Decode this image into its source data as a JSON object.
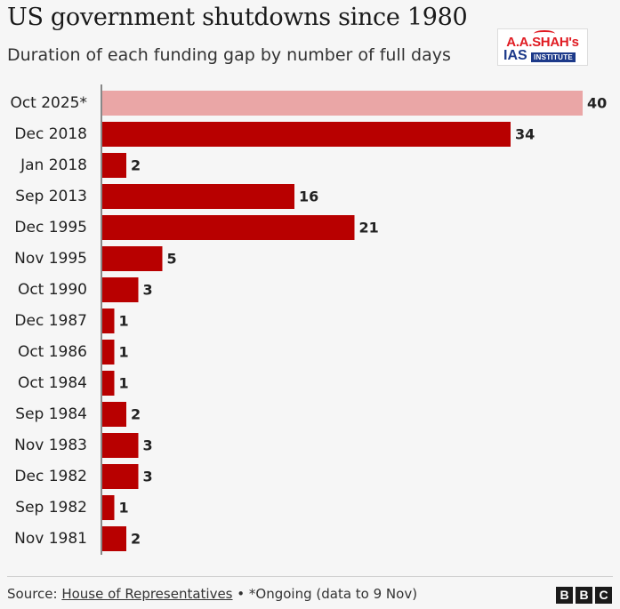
{
  "header": {
    "title": "US government shutdowns since 1980",
    "subtitle": "Duration of each funding gap by number of full days"
  },
  "logo": {
    "line1": "A.A.SHAH's",
    "ias": "IAS",
    "institute": "INSTITUTE"
  },
  "footer": {
    "source_prefix": "Source: ",
    "source_link": "House of Representatives",
    "separator": " • ",
    "note": "*Ongoing (data to 9 Nov)",
    "brand": [
      "B",
      "B",
      "C"
    ]
  },
  "colors": {
    "bar": "#b80000",
    "bar_highlight": "#eaa6a6",
    "axis": "#1a1a1a"
  },
  "chart_data": {
    "type": "bar",
    "orientation": "horizontal",
    "title": "US government shutdowns since 1980",
    "subtitle": "Duration of each funding gap by number of full days",
    "xlabel": "",
    "ylabel": "",
    "xlim": [
      0,
      40
    ],
    "grid": false,
    "legend": "none",
    "categories": [
      "Oct 2025*",
      "Dec 2018",
      "Jan 2018",
      "Sep 2013",
      "Dec 1995",
      "Nov 1995",
      "Oct 1990",
      "Dec 1987",
      "Oct 1986",
      "Oct 1984",
      "Sep 1984",
      "Nov 1983",
      "Dec 1982",
      "Sep 1982",
      "Nov 1981"
    ],
    "values": [
      40,
      34,
      2,
      16,
      21,
      5,
      3,
      1,
      1,
      1,
      2,
      3,
      3,
      1,
      2
    ],
    "highlight": [
      "Oct 2025*"
    ]
  }
}
